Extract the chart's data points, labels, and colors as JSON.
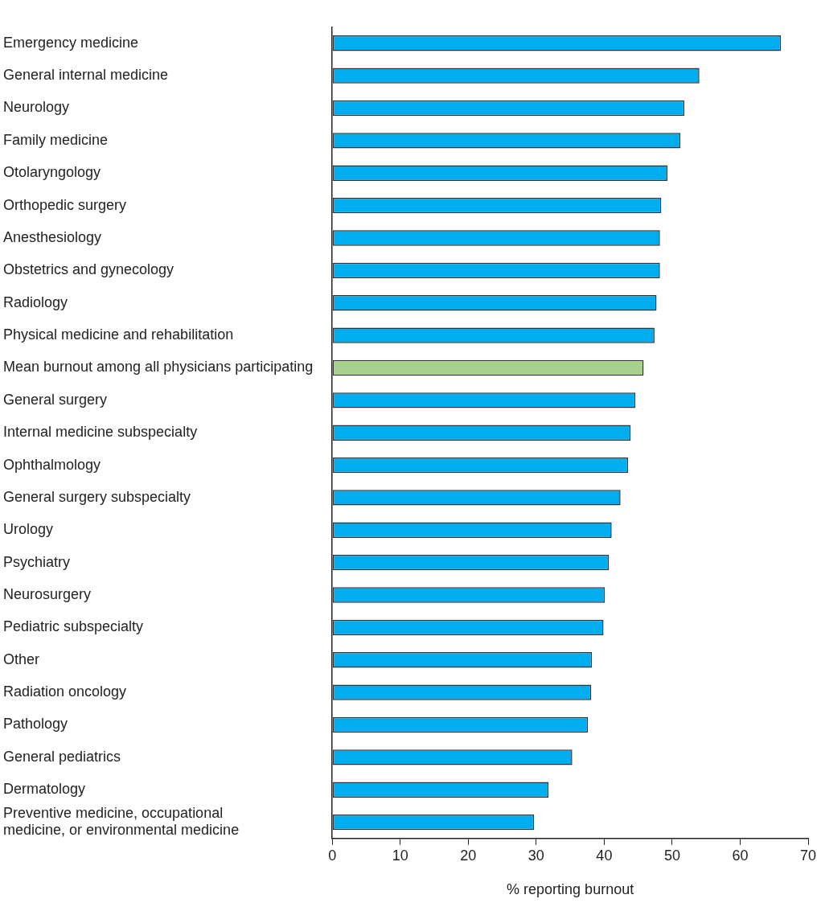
{
  "chart_data": {
    "type": "bar",
    "orientation": "horizontal",
    "xlabel": "% reporting burnout",
    "categories": [
      "Emergency medicine",
      "General internal medicine",
      "Neurology",
      "Family medicine",
      "Otolaryngology",
      "Orthopedic surgery",
      "Anesthesiology",
      "Obstetrics and gynecology",
      "Radiology",
      "Physical medicine and rehabilitation",
      "Mean burnout among all physicians participating",
      "General surgery",
      "Internal medicine subspecialty",
      "Ophthalmology",
      "General surgery subspecialty",
      "Urology",
      "Psychiatry",
      "Neurosurgery",
      "Pediatric subspecialty",
      "Other",
      "Radiation oncology",
      "Pathology",
      "General pediatrics",
      "Dermatology",
      "Preventive medicine, occupational medicine, or environmental medicine"
    ],
    "values": [
      66,
      54,
      51.8,
      51.2,
      49.3,
      48.4,
      48.2,
      48.2,
      47.7,
      47.4,
      45.8,
      44.6,
      43.9,
      43.5,
      42.4,
      41.1,
      40.7,
      40.1,
      39.9,
      38.2,
      38.1,
      37.6,
      35.3,
      31.8,
      29.7
    ],
    "colors": [
      "#00aeef",
      "#00aeef",
      "#00aeef",
      "#00aeef",
      "#00aeef",
      "#00aeef",
      "#00aeef",
      "#00aeef",
      "#00aeef",
      "#00aeef",
      "#a9d18e",
      "#00aeef",
      "#00aeef",
      "#00aeef",
      "#00aeef",
      "#00aeef",
      "#00aeef",
      "#00aeef",
      "#00aeef",
      "#00aeef",
      "#00aeef",
      "#00aeef",
      "#00aeef",
      "#00aeef",
      "#00aeef"
    ],
    "xlim": [
      0,
      70
    ],
    "xticks": [
      0,
      10,
      20,
      30,
      40,
      50,
      60,
      70
    ],
    "grid": false,
    "legend": false
  }
}
